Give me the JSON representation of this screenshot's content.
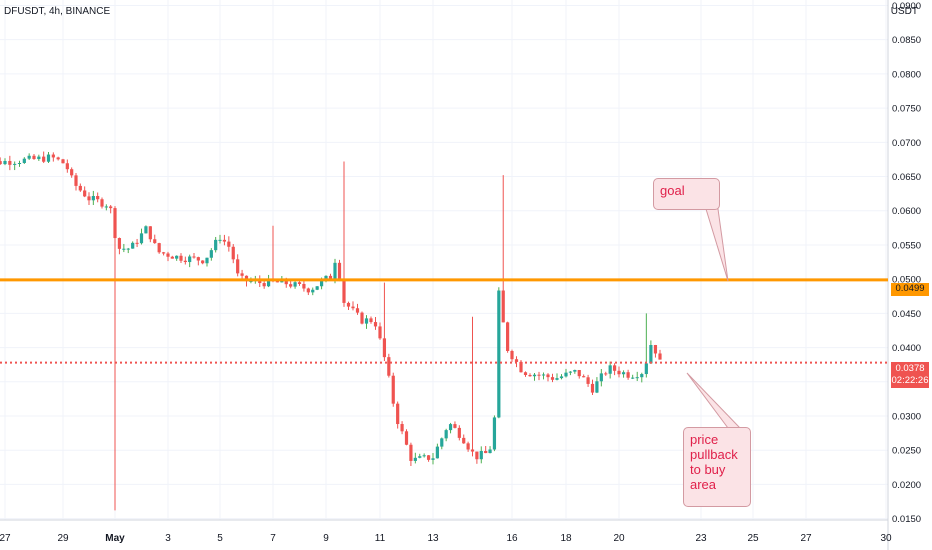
{
  "header": {
    "symbol_line": "DFUSDT, 4h, BINANCE",
    "currency": "USDT"
  },
  "chart_data": {
    "type": "candlestick",
    "title": "DFUSDT, 4h, BINANCE",
    "ylabel": "USDT",
    "ylim": [
      0.0148,
      0.0908
    ],
    "grid": true,
    "y_ticks": [
      "0.0900",
      "0.0850",
      "0.0800",
      "0.0750",
      "0.0700",
      "0.0650",
      "0.0600",
      "0.0550",
      "0.0500",
      "0.0450",
      "0.0400",
      "0.0350",
      "0.0300",
      "0.0250",
      "0.0200",
      "0.0150"
    ],
    "x_ticks": [
      "27",
      "29",
      "May",
      "3",
      "5",
      "7",
      "9",
      "11",
      "13",
      "16",
      "18",
      "20",
      "23",
      "25",
      "27",
      "30"
    ],
    "price_series": [
      {
        "d": 26.0,
        "p": 0.0668
      },
      {
        "d": 27.0,
        "p": 0.0672
      },
      {
        "d": 28.0,
        "p": 0.0675
      },
      {
        "d": 28.6,
        "p": 0.0678
      },
      {
        "d": 29.1,
        "p": 0.0668
      },
      {
        "d": 29.4,
        "p": 0.064
      },
      {
        "d": 30.0,
        "p": 0.0618
      },
      {
        "d": 30.8,
        "p": 0.0608
      },
      {
        "d": 31.1,
        "p": 0.0545
      },
      {
        "d": 31.6,
        "p": 0.0545
      },
      {
        "d": 32.2,
        "p": 0.0575
      },
      {
        "d": 32.6,
        "p": 0.054
      },
      {
        "d": 33.4,
        "p": 0.0532
      },
      {
        "d": 34.4,
        "p": 0.0528
      },
      {
        "d": 35.0,
        "p": 0.0562
      },
      {
        "d": 35.4,
        "p": 0.0545
      },
      {
        "d": 35.7,
        "p": 0.05
      },
      {
        "d": 36.4,
        "p": 0.0495
      },
      {
        "d": 37.4,
        "p": 0.0495
      },
      {
        "d": 38.4,
        "p": 0.0485
      },
      {
        "d": 39.2,
        "p": 0.0505
      },
      {
        "d": 39.4,
        "p": 0.054
      },
      {
        "d": 39.6,
        "p": 0.047
      },
      {
        "d": 40.3,
        "p": 0.044
      },
      {
        "d": 40.8,
        "p": 0.044
      },
      {
        "d": 41.2,
        "p": 0.038
      },
      {
        "d": 41.6,
        "p": 0.03
      },
      {
        "d": 42.2,
        "p": 0.0235
      },
      {
        "d": 43.0,
        "p": 0.024
      },
      {
        "d": 43.6,
        "p": 0.029
      },
      {
        "d": 44.1,
        "p": 0.027
      },
      {
        "d": 44.6,
        "p": 0.024
      },
      {
        "d": 45.0,
        "p": 0.0245
      },
      {
        "d": 45.3,
        "p": 0.026
      },
      {
        "d": 45.5,
        "p": 0.0478
      },
      {
        "d": 45.8,
        "p": 0.04
      },
      {
        "d": 46.4,
        "p": 0.0365
      },
      {
        "d": 47.6,
        "p": 0.0355
      },
      {
        "d": 48.4,
        "p": 0.0365
      },
      {
        "d": 49.0,
        "p": 0.034
      },
      {
        "d": 49.6,
        "p": 0.037
      },
      {
        "d": 50.4,
        "p": 0.036
      },
      {
        "d": 50.9,
        "p": 0.0365
      },
      {
        "d": 51.2,
        "p": 0.041
      },
      {
        "d": 51.5,
        "p": 0.0378
      }
    ],
    "horizontal_level": {
      "value": 0.0499,
      "label": "0.0499",
      "color": "#ff9800"
    },
    "last_price": {
      "value": 0.0378,
      "label": "0.0378",
      "countdown": "02:22:26",
      "color": "#ef5350"
    }
  },
  "annotations": {
    "goal": "goal",
    "pullback": "price pullback to buy area"
  },
  "colors": {
    "up": "#26a69a",
    "up_wick": "#4caf50",
    "down": "#ef5350",
    "grid": "#f0f3fa",
    "axis_text": "#131722"
  }
}
